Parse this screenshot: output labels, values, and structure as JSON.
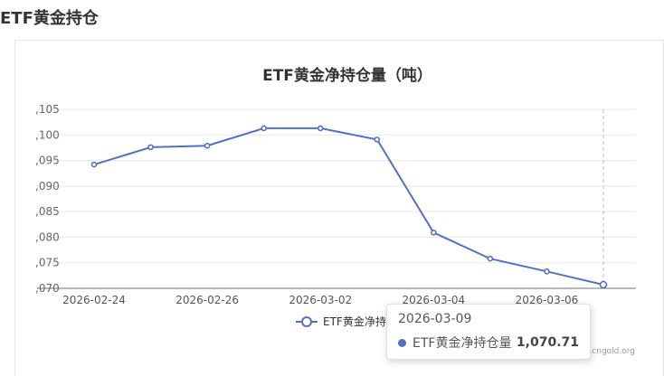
{
  "header": {
    "title": "ETF黄金持仓"
  },
  "colors": {
    "series": "#5470c6",
    "axis": "#6e7079",
    "grid": "#e8e8e8",
    "crosshair": "#bbbbbb"
  },
  "chart_data": {
    "type": "line",
    "title": "ETF黄金净持仓量（吨）",
    "x": [
      "2026-02-24",
      "2026-02-25",
      "2026-02-26",
      "2026-02-27",
      "2026-03-02",
      "2026-03-03",
      "2026-03-04",
      "2026-03-05",
      "2026-03-06",
      "2026-03-09"
    ],
    "x_tick_labels": [
      "2026-02-24",
      "2026-02-26",
      "2026-03-02",
      "2026-03-04",
      "2026-03-06"
    ],
    "y_tick_labels": [
      ",070",
      ",075",
      ",080",
      ",085",
      ",090",
      ",095",
      ",100",
      ",105"
    ],
    "ylim": [
      1070,
      1105
    ],
    "yticks": [
      1070,
      1075,
      1080,
      1085,
      1090,
      1095,
      1100,
      1105
    ],
    "grid": true,
    "legend": "bottom-center",
    "series": [
      {
        "name": "ETF黄金净持仓量",
        "values": [
          1094.2,
          1097.6,
          1097.9,
          1101.3,
          1101.3,
          1099.1,
          1080.9,
          1075.8,
          1073.3,
          1070.71
        ]
      }
    ]
  },
  "legend": {
    "label": "ETF黄金净持"
  },
  "tooltip": {
    "date": "2026-03-09",
    "series_name": "ETF黄金净持仓量",
    "value": "1,070.71"
  },
  "source": {
    "text": "www.cngold.org"
  }
}
